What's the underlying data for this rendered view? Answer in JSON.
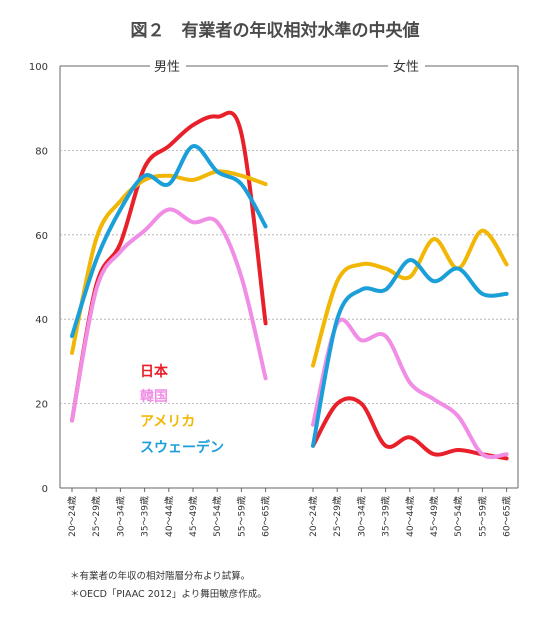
{
  "figure": {
    "title": "図２　有業者の年収相対水準の中央値",
    "notes": [
      "＊有業者の年収の相対階層分布より試算。",
      "＊OECD「PIAAC 2012」より舞田敏彦作成。"
    ]
  },
  "chart_data": [
    {
      "type": "line",
      "title": "男性",
      "x": [
        "20～24歳",
        "25～29歳",
        "30～34歳",
        "35～39歳",
        "40～44歳",
        "45～49歳",
        "50～54歳",
        "55～59歳",
        "60～65歳"
      ],
      "ylim": [
        0,
        100
      ],
      "yticks": [
        0,
        20,
        40,
        60,
        80,
        100
      ],
      "series": [
        {
          "name": "日本",
          "color": "#e8202a",
          "values": [
            16,
            48,
            58,
            76,
            81,
            86,
            88,
            84,
            39
          ]
        },
        {
          "name": "韓国",
          "color": "#f08ee6",
          "values": [
            16,
            47,
            56,
            61,
            66,
            63,
            63,
            50,
            26
          ]
        },
        {
          "name": "アメリカ",
          "color": "#f2b705",
          "values": [
            32,
            59,
            68,
            73,
            74,
            73,
            75,
            74,
            72
          ]
        },
        {
          "name": "スウェーデン",
          "color": "#1b9fd8",
          "values": [
            36,
            54,
            66,
            74,
            72,
            81,
            75,
            72,
            62
          ]
        }
      ]
    },
    {
      "type": "line",
      "title": "女性",
      "x": [
        "20～24歳",
        "25～29歳",
        "30～34歳",
        "35～39歳",
        "40～44歳",
        "45～49歳",
        "50～54歳",
        "55～59歳",
        "60～65歳"
      ],
      "ylim": [
        0,
        100
      ],
      "yticks": [
        0,
        20,
        40,
        60,
        80,
        100
      ],
      "series": [
        {
          "name": "日本",
          "color": "#e8202a",
          "values": [
            10,
            20,
            20,
            10,
            12,
            8,
            9,
            8,
            7
          ]
        },
        {
          "name": "韓国",
          "color": "#f08ee6",
          "values": [
            15,
            39,
            35,
            36,
            25,
            21,
            17,
            8,
            8
          ]
        },
        {
          "name": "アメリカ",
          "color": "#f2b705",
          "values": [
            29,
            49,
            53,
            52,
            50,
            59,
            52,
            61,
            53
          ]
        },
        {
          "name": "スウェーデン",
          "color": "#1b9fd8",
          "values": [
            10,
            40,
            47,
            47,
            54,
            49,
            52,
            46,
            46
          ]
        }
      ]
    }
  ]
}
